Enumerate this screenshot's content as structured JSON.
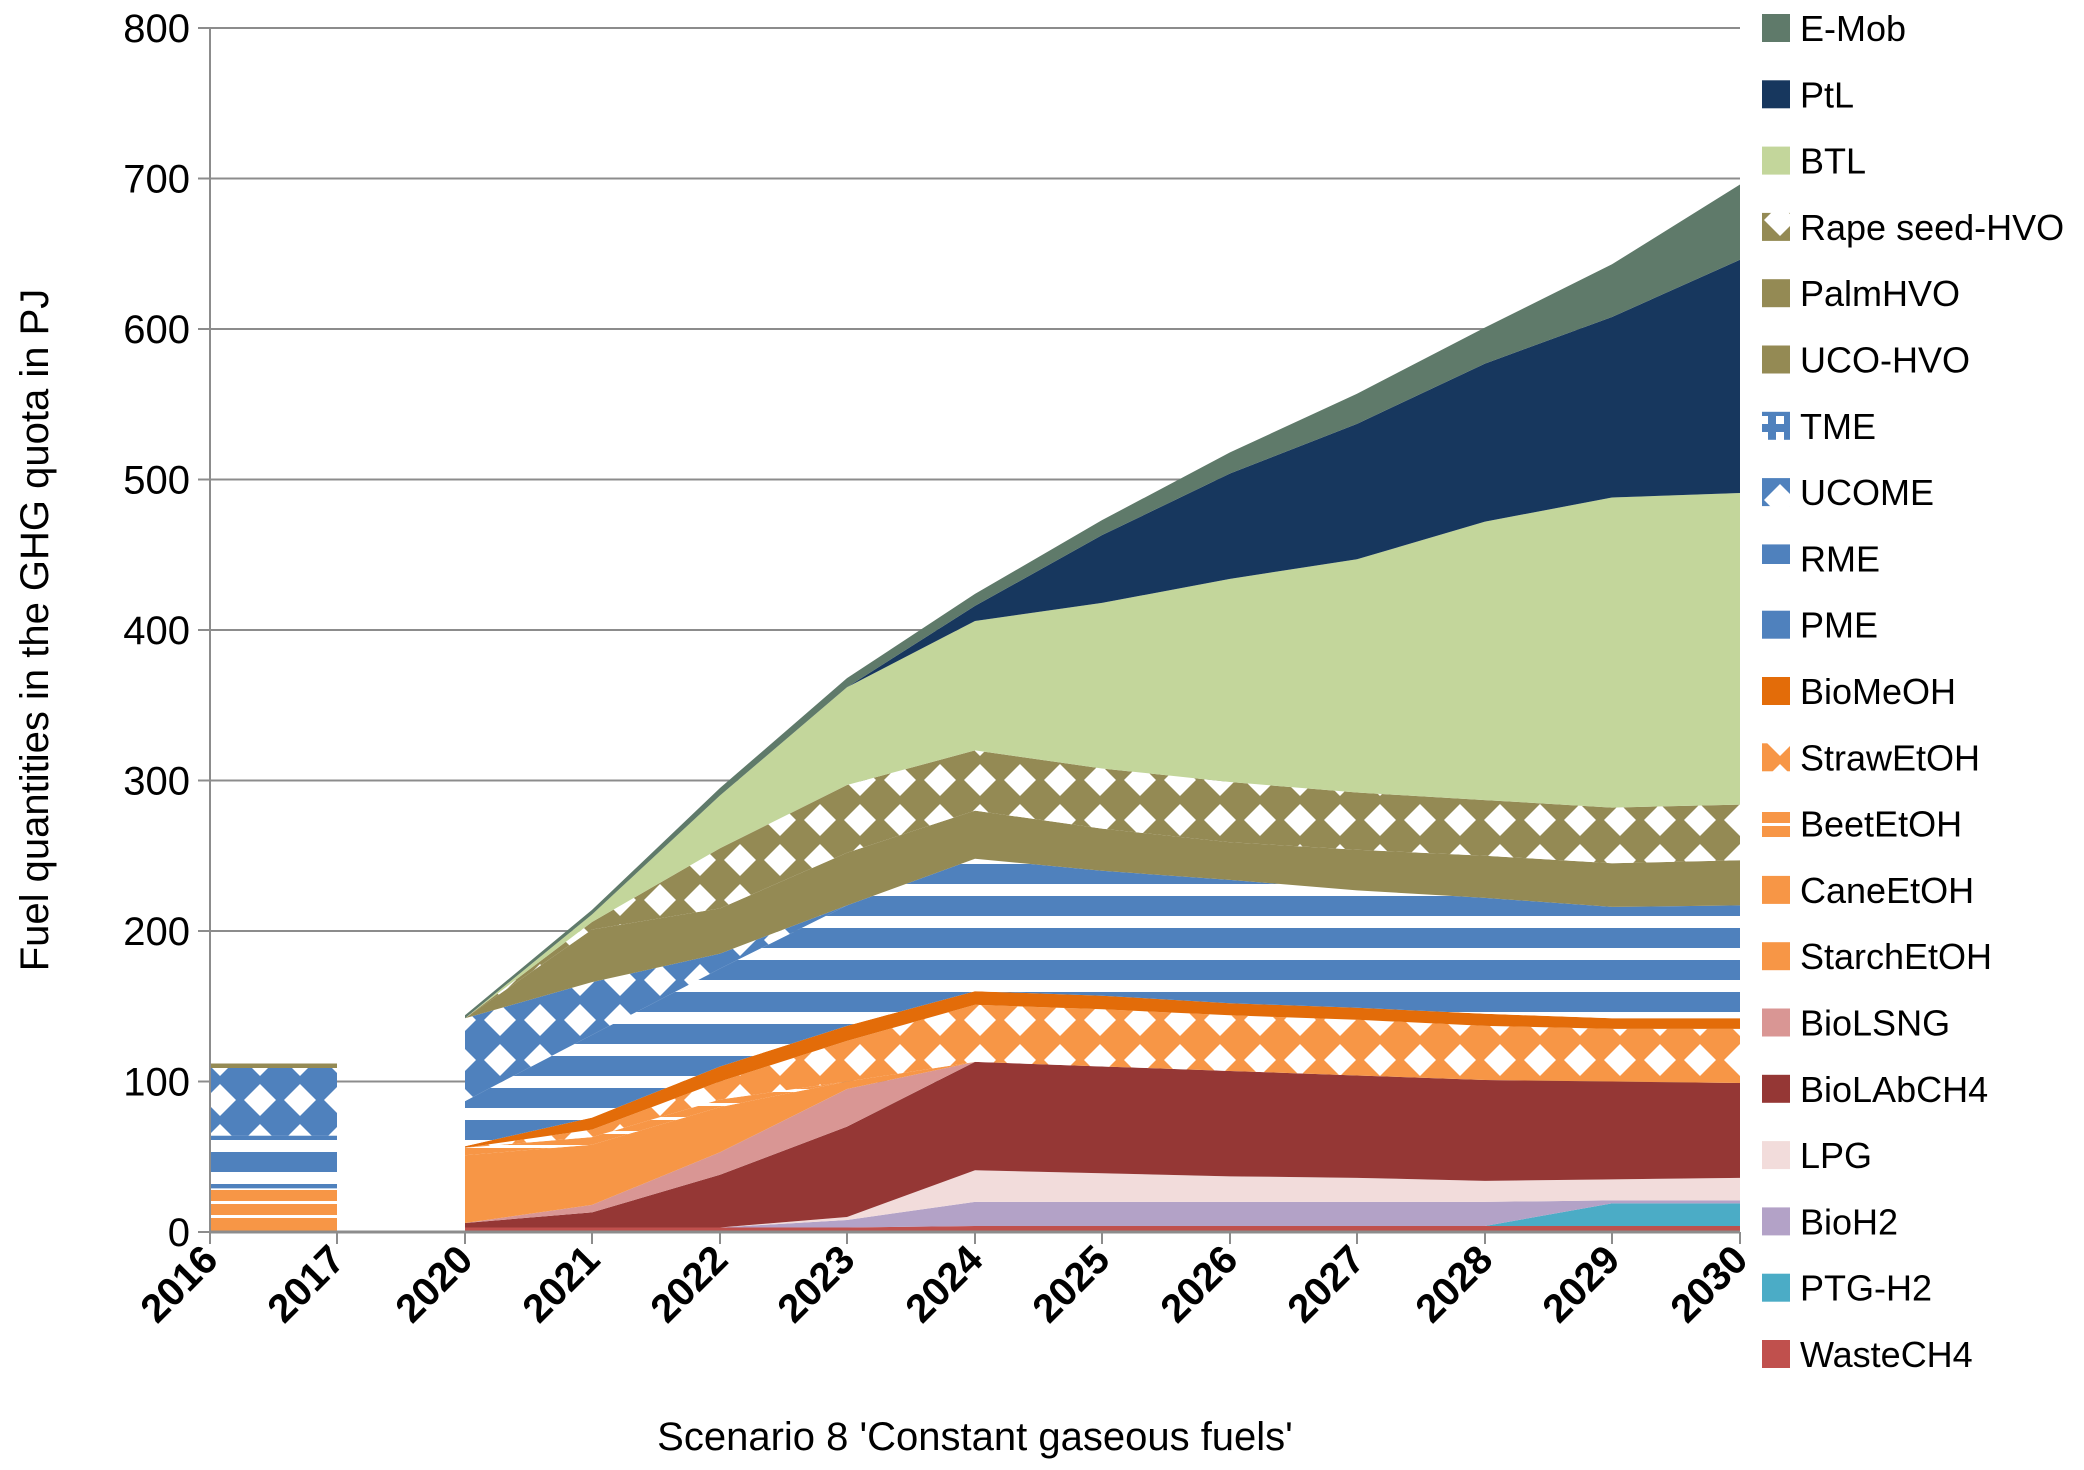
{
  "chart_data": {
    "type": "area",
    "title": "",
    "xlabel": "Scenario 8 'Constant gaseous fuels'",
    "ylabel": "Fuel quantities in the GHG quota in PJ",
    "ylim": [
      0,
      800
    ],
    "yticks": [
      "0",
      "100",
      "200",
      "300",
      "400",
      "500",
      "600",
      "700",
      "800"
    ],
    "ytick_values": [
      0,
      100,
      200,
      300,
      400,
      500,
      600,
      700,
      800
    ],
    "grid": true,
    "legend_position": "right",
    "categories": [
      "2016",
      "2017",
      "2020",
      "2021",
      "2022",
      "2023",
      "2024",
      "2025",
      "2026",
      "2027",
      "2028",
      "2029",
      "2030"
    ],
    "note": "2016-2017 are shown as a separate group; 2017-2020 gap is empty. Values are stacked layer thicknesses in PJ, bottom to top.",
    "series": [
      {
        "name": "WasteCH4",
        "color": "#c0504d",
        "pattern": "solid",
        "values": [
          1,
          1,
          3,
          3,
          3,
          3,
          4,
          4,
          4,
          4,
          4,
          4,
          4
        ]
      },
      {
        "name": "PTG-H2",
        "color": "#4bacc6",
        "pattern": "solid",
        "values": [
          0,
          0,
          0,
          0,
          0,
          0,
          0,
          0,
          0,
          0,
          0,
          15,
          15
        ]
      },
      {
        "name": "BioH2",
        "color": "#b3a2c7",
        "pattern": "solid",
        "values": [
          0,
          0,
          0,
          0,
          0,
          5,
          16,
          16,
          16,
          16,
          16,
          2,
          2
        ]
      },
      {
        "name": "LPG",
        "color": "#f2dcdb",
        "pattern": "solid",
        "values": [
          0,
          0,
          0,
          0,
          0,
          2,
          21,
          19,
          17,
          16,
          14,
          14,
          15
        ]
      },
      {
        "name": "BioLAbCH4",
        "color": "#953735",
        "pattern": "solid",
        "values": [
          0,
          0,
          3,
          10,
          35,
          60,
          72,
          71,
          70,
          68,
          67,
          65,
          63
        ]
      },
      {
        "name": "BioLSNG",
        "color": "#d99694",
        "pattern": "solid",
        "values": [
          0,
          0,
          0,
          5,
          15,
          25,
          0,
          0,
          0,
          0,
          0,
          0,
          0
        ]
      },
      {
        "name": "StarchEtOH",
        "color": "#f79646",
        "pattern": "solid",
        "values": [
          8,
          8,
          45,
          40,
          30,
          5,
          0,
          0,
          0,
          0,
          0,
          0,
          0
        ]
      },
      {
        "name": "CaneEtOH",
        "color": "#f79646",
        "pattern": "solid",
        "values": [
          0,
          0,
          0,
          0,
          0,
          0,
          0,
          0,
          0,
          0,
          0,
          0,
          0
        ]
      },
      {
        "name": "BeetEtOH",
        "color": "#f79646",
        "pattern": "stripe",
        "values": [
          20,
          20,
          5,
          5,
          5,
          0,
          0,
          0,
          0,
          0,
          0,
          0,
          0
        ]
      },
      {
        "name": "StrawEtOH",
        "color": "#f79646",
        "pattern": "diamond",
        "values": [
          0,
          0,
          0,
          5,
          12,
          27,
          38,
          38,
          37,
          37,
          36,
          35,
          36
        ]
      },
      {
        "name": "BioMeOH",
        "color": "#e36c09",
        "pattern": "solid",
        "values": [
          0,
          0,
          1,
          8,
          10,
          10,
          9,
          9,
          8,
          8,
          8,
          7,
          7
        ]
      },
      {
        "name": "PME",
        "color": "#4f81bd",
        "pattern": "solid",
        "values": [
          0,
          0,
          0,
          0,
          0,
          0,
          0,
          0,
          0,
          0,
          0,
          0,
          0
        ]
      },
      {
        "name": "RME",
        "color": "#4f81bd",
        "pattern": "hstripe",
        "values": [
          35,
          35,
          30,
          55,
          65,
          80,
          88,
          83,
          82,
          78,
          77,
          74,
          75
        ]
      },
      {
        "name": "UCOME",
        "color": "#4f81bd",
        "pattern": "diamond",
        "values": [
          45,
          45,
          55,
          35,
          10,
          0,
          0,
          0,
          0,
          0,
          0,
          0,
          0
        ]
      },
      {
        "name": "TME",
        "color": "#4f81bd",
        "pattern": "checker",
        "values": [
          0,
          0,
          0,
          0,
          0,
          0,
          0,
          0,
          0,
          0,
          0,
          0,
          0
        ]
      },
      {
        "name": "UCO-HVO",
        "color": "#948a54",
        "pattern": "solid",
        "values": [
          3,
          3,
          0,
          35,
          30,
          35,
          32,
          28,
          25,
          27,
          28,
          29,
          30
        ]
      },
      {
        "name": "PalmHVO",
        "color": "#948a54",
        "pattern": "solid",
        "values": [
          0,
          0,
          0,
          0,
          0,
          0,
          0,
          0,
          0,
          0,
          0,
          0,
          0
        ]
      },
      {
        "name": "Rape seed-HVO",
        "color": "#948a54",
        "pattern": "diamond",
        "values": [
          0,
          0,
          0,
          5,
          40,
          45,
          40,
          40,
          40,
          38,
          37,
          37,
          37
        ]
      },
      {
        "name": "BTL",
        "color": "#c3d69b",
        "pattern": "solid",
        "values": [
          0,
          0,
          0,
          5,
          35,
          65,
          86,
          110,
          135,
          155,
          185,
          206,
          207
        ]
      },
      {
        "name": "PtL",
        "color": "#17375e",
        "pattern": "solid",
        "values": [
          0,
          0,
          0,
          0,
          0,
          0,
          10,
          45,
          70,
          90,
          105,
          120,
          155
        ]
      },
      {
        "name": "E-Mob",
        "color": "#5f7a6a",
        "pattern": "solid",
        "values": [
          0,
          0,
          2,
          3,
          5,
          6,
          8,
          10,
          14,
          20,
          24,
          35,
          50
        ]
      }
    ],
    "legend_order": [
      "E-Mob",
      "PtL",
      "BTL",
      "Rape seed-HVO",
      "PalmHVO",
      "UCO-HVO",
      "TME",
      "UCOME",
      "RME",
      "PME",
      "BioMeOH",
      "StrawEtOH",
      "BeetEtOH",
      "CaneEtOH",
      "StarchEtOH",
      "BioLSNG",
      "BioLAbCH4",
      "LPG",
      "BioH2",
      "PTG-H2",
      "WasteCH4"
    ]
  }
}
